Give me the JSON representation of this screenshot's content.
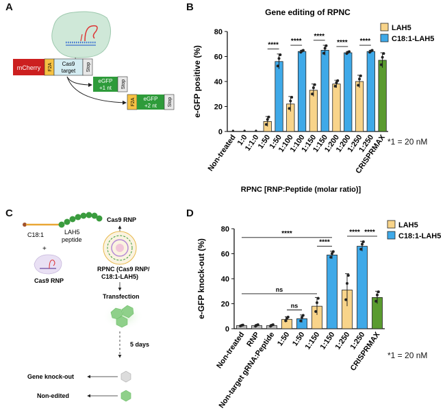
{
  "panels": {
    "a": {
      "letter": "A",
      "blocks": {
        "mcherry": "mCherry",
        "f2a": "F2A",
        "cas9_line1": "Cas9",
        "cas9_line2": "target",
        "stop": "Stop",
        "egfp1_line1": "eGFP",
        "egfp1_line2": "+1 nt",
        "stop2": "Stop",
        "f2a_2": "F2A",
        "egfp2_line1": "eGFP",
        "egfp2_line2": "+2 nt",
        "stop3": "Stop"
      }
    },
    "b": {
      "letter": "B",
      "footnote": "*1 = 20 nM"
    },
    "c": {
      "letter": "C",
      "c18": "C18:1",
      "lah5_line1": "LAH5",
      "lah5_line2": "peptide",
      "plus": "+",
      "cas9rnp_left": "Cas9 RNP",
      "cas9rnp_top": "Cas9 RNP",
      "rpnc_line1": "RPNC (Cas9 RNP/",
      "rpnc_line2": "C18:1-LAH5)",
      "transfection": "Transfection",
      "days": "5 days",
      "knockout": "Gene knock-out",
      "nonedited": "Non-edited"
    },
    "d": {
      "letter": "D",
      "footnote": "*1 = 20 nM"
    }
  },
  "colors": {
    "lah5": "#f8d48a",
    "c18": "#3fa9e8",
    "crispr": "#5a9b2f",
    "gray": "#bdbdbd",
    "mcherry": "#cc1f1f",
    "f2a": "#f6c243",
    "cas9target": "#d4ecf2",
    "egfp": "#2e9b3a",
    "stop": "#e8e8e8"
  },
  "chart_data": [
    {
      "type": "bar",
      "title": "Gene editing of RPNC",
      "ylabel": "e-GFP positive (%)",
      "xlabel": "RPNC [RNP:Peptide (molar ratio)]",
      "ylim": [
        0,
        80
      ],
      "yticks": [
        "0",
        "20",
        "40",
        "60",
        "80"
      ],
      "legend": [
        "LAH5",
        "C18:1-LAH5"
      ],
      "categories": [
        "Non-treated",
        "1:0",
        "1:1:0",
        "1:50",
        "1:50",
        "1:100",
        "1:100",
        "1:150",
        "1:150",
        "1:200",
        "1:200",
        "1:250",
        "1:250",
        "CRISPRMAX"
      ],
      "values": [
        0,
        0,
        0,
        8,
        56,
        22,
        64,
        33,
        65,
        38,
        63,
        40,
        64,
        57
      ],
      "errors": [
        0,
        0,
        0,
        4,
        6,
        6,
        1,
        5,
        4,
        3,
        1,
        5,
        1,
        6
      ],
      "series_of_bar": [
        "none",
        "none",
        "none",
        "lah5",
        "c18",
        "lah5",
        "c18",
        "lah5",
        "c18",
        "lah5",
        "c18",
        "lah5",
        "c18",
        "crispr"
      ],
      "significance": [
        {
          "from": 3,
          "to": 4,
          "label": "****"
        },
        {
          "from": 5,
          "to": 6,
          "label": "****"
        },
        {
          "from": 7,
          "to": 8,
          "label": "****"
        },
        {
          "from": 9,
          "to": 10,
          "label": "****"
        },
        {
          "from": 11,
          "to": 12,
          "label": "****"
        }
      ]
    },
    {
      "type": "bar",
      "title": "",
      "ylabel": "e-GFP knock-out (%)",
      "xlabel": "",
      "ylim": [
        0,
        80
      ],
      "yticks": [
        "0",
        "20",
        "40",
        "60",
        "80"
      ],
      "legend": [
        "LAH5",
        "C18:1-LAH5"
      ],
      "categories": [
        "Non-treated",
        "RNP",
        "Non-target gRNA:Peptide",
        "1:50",
        "1:50",
        "1:150",
        "1:150",
        "1:250",
        "1:250",
        "CRISPRMAX"
      ],
      "values": [
        2.5,
        2.5,
        2.5,
        7.5,
        8,
        18,
        59,
        31,
        66,
        25
      ],
      "errors": [
        0.5,
        0.8,
        0.8,
        2,
        3,
        7,
        3,
        13,
        4,
        5
      ],
      "series_of_bar": [
        "gray",
        "gray",
        "gray",
        "lah5",
        "c18",
        "lah5",
        "c18",
        "lah5",
        "c18",
        "crispr"
      ],
      "significance": [
        {
          "from": 0,
          "to": 6,
          "label": "****"
        },
        {
          "from": 0,
          "to": 5,
          "label": "ns"
        },
        {
          "from": 3,
          "to": 4,
          "label": "ns"
        },
        {
          "from": 5,
          "to": 6,
          "label": "****"
        },
        {
          "from": 7,
          "to": 8,
          "label": "****"
        },
        {
          "from": 8,
          "to": 9,
          "label": "****"
        }
      ]
    }
  ]
}
